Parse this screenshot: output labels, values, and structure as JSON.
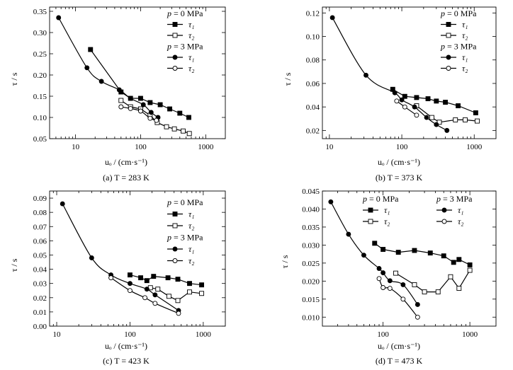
{
  "chart_data": [
    {
      "type": "line",
      "panel": "a",
      "caption": "(a) T = 283 K",
      "xlabel": "uₒ / (cm·s⁻¹)",
      "ylabel": "τ / s",
      "xscale": "log",
      "xlim": [
        4,
        2000
      ],
      "ylim": [
        0.05,
        0.36
      ],
      "yticks": [
        0.05,
        0.1,
        0.15,
        0.2,
        0.25,
        0.3,
        0.35
      ],
      "ytick_labels": [
        "0.05",
        "0.10",
        "0.15",
        "0.20",
        "0.25",
        "0.30",
        "0.35"
      ],
      "xticks": [
        10,
        100,
        1000
      ],
      "xtick_labels": [
        "10",
        "100",
        "1000"
      ],
      "legend": {
        "position": "top-right",
        "layout": "column",
        "groups": [
          {
            "title_var": "p",
            "title_rest": " = 0  MPa",
            "items": [
              {
                "label": "τ₁",
                "marker": "filled-square"
              },
              {
                "label": "τ₂",
                "marker": "open-square"
              }
            ]
          },
          {
            "title_var": "p",
            "title_rest": " = 3  MPa",
            "items": [
              {
                "label": "τ₁",
                "marker": "filled-circle"
              },
              {
                "label": "τ₂",
                "marker": "open-circle"
              }
            ]
          }
        ]
      },
      "series": [
        {
          "name": "p=0 MPa τ1",
          "marker": "filled-square",
          "smooth": false,
          "x": [
            17,
            50,
            70,
            100,
            140,
            200,
            280,
            400,
            550
          ],
          "y": [
            0.26,
            0.16,
            0.145,
            0.145,
            0.135,
            0.13,
            0.12,
            0.11,
            0.1
          ]
        },
        {
          "name": "p=0 MPa τ2",
          "marker": "open-square",
          "smooth": false,
          "x": [
            50,
            70,
            100,
            140,
            180,
            250,
            330,
            450,
            560
          ],
          "y": [
            0.14,
            0.125,
            0.12,
            0.105,
            0.088,
            0.078,
            0.073,
            0.068,
            0.062
          ]
        },
        {
          "name": "p=3 MPa τ1",
          "marker": "filled-circle",
          "smooth": true,
          "x": [
            5.5,
            15,
            25,
            47,
            70,
            110,
            145,
            185
          ],
          "y": [
            0.335,
            0.217,
            0.185,
            0.165,
            0.145,
            0.13,
            0.112,
            0.1
          ]
        },
        {
          "name": "p=3 MPa τ2",
          "marker": "open-circle",
          "smooth": true,
          "x": [
            50,
            70,
            100,
            140,
            175
          ],
          "y": [
            0.125,
            0.121,
            0.115,
            0.098,
            0.093
          ]
        }
      ]
    },
    {
      "type": "line",
      "panel": "b",
      "caption": "(b) T = 373 K",
      "xlabel": "uₒ / (cm·s⁻¹)",
      "ylabel": "τ / s",
      "xscale": "log",
      "xlim": [
        8,
        2000
      ],
      "ylim": [
        0.013,
        0.125
      ],
      "yticks": [
        0.02,
        0.04,
        0.06,
        0.08,
        0.1,
        0.12
      ],
      "ytick_labels": [
        "0.02",
        "0.04",
        "0.06",
        "0.08",
        "0.10",
        "0.12"
      ],
      "xticks": [
        10,
        100,
        1000
      ],
      "xtick_labels": [
        "10",
        "100",
        "1000"
      ],
      "legend": {
        "position": "top-right",
        "layout": "column",
        "groups": [
          {
            "title_var": "p",
            "title_rest": " = 0  MPa",
            "items": [
              {
                "label": "τ₁",
                "marker": "filled-square"
              },
              {
                "label": "τ₂",
                "marker": "open-square"
              }
            ]
          },
          {
            "title_var": "p",
            "title_rest": " = 3  MPa",
            "items": [
              {
                "label": "τ₁",
                "marker": "filled-circle"
              },
              {
                "label": "τ₂",
                "marker": "open-circle"
              }
            ]
          }
        ]
      },
      "series": [
        {
          "name": "p=0 MPa τ1",
          "marker": "filled-square",
          "smooth": false,
          "x": [
            75,
            110,
            160,
            230,
            300,
            400,
            600,
            1050
          ],
          "y": [
            0.055,
            0.049,
            0.048,
            0.047,
            0.045,
            0.044,
            0.041,
            0.035
          ]
        },
        {
          "name": "p=0 MPa τ2",
          "marker": "open-square",
          "smooth": false,
          "x": [
            160,
            260,
            330,
            550,
            750,
            1100
          ],
          "y": [
            0.041,
            0.031,
            0.027,
            0.029,
            0.029,
            0.028
          ]
        },
        {
          "name": "p=3 MPa τ1",
          "marker": "filled-circle",
          "smooth": true,
          "x": [
            11,
            32,
            80,
            100,
            150,
            220,
            300,
            420
          ],
          "y": [
            0.116,
            0.067,
            0.052,
            0.046,
            0.04,
            0.031,
            0.025,
            0.02
          ]
        },
        {
          "name": "p=3 MPa τ2",
          "marker": "open-circle",
          "smooth": true,
          "x": [
            85,
            110,
            160
          ],
          "y": [
            0.045,
            0.04,
            0.033
          ]
        }
      ]
    },
    {
      "type": "line",
      "panel": "c",
      "caption": "(c) T = 423 K",
      "xlabel": "uₒ / (cm·s⁻¹)",
      "ylabel": "τ / s",
      "xscale": "log",
      "xlim": [
        8,
        2000
      ],
      "ylim": [
        0,
        0.095
      ],
      "yticks": [
        0,
        0.01,
        0.02,
        0.03,
        0.04,
        0.05,
        0.06,
        0.07,
        0.08,
        0.09
      ],
      "ytick_labels": [
        "0.00",
        "0.01",
        "0.02",
        "0.03",
        "0.04",
        "0.05",
        "0.06",
        "0.07",
        "0.08",
        "0.09"
      ],
      "xticks": [
        10,
        100,
        1000
      ],
      "xtick_labels": [
        "10",
        "100",
        "1000"
      ],
      "legend": {
        "position": "top-right",
        "layout": "column",
        "groups": [
          {
            "title_var": "p",
            "title_rest": " = 0  MPa",
            "items": [
              {
                "label": "τ₁",
                "marker": "filled-square"
              },
              {
                "label": "τ₂",
                "marker": "open-square"
              }
            ]
          },
          {
            "title_var": "p",
            "title_rest": " = 3  MPa",
            "items": [
              {
                "label": "τ₁",
                "marker": "filled-circle"
              },
              {
                "label": "τ₂",
                "marker": "open-circle"
              }
            ]
          }
        ]
      },
      "series": [
        {
          "name": "p=0 MPa τ1",
          "marker": "filled-square",
          "smooth": false,
          "x": [
            100,
            140,
            170,
            210,
            330,
            450,
            650,
            950
          ],
          "y": [
            0.036,
            0.034,
            0.032,
            0.035,
            0.034,
            0.033,
            0.03,
            0.029
          ]
        },
        {
          "name": "p=0 MPa τ2",
          "marker": "open-square",
          "smooth": false,
          "x": [
            190,
            240,
            340,
            450,
            650,
            950
          ],
          "y": [
            0.027,
            0.026,
            0.021,
            0.018,
            0.024,
            0.023
          ]
        },
        {
          "name": "p=3 MPa τ1",
          "marker": "filled-circle",
          "smooth": true,
          "x": [
            12,
            30,
            55,
            100,
            170,
            220,
            460
          ],
          "y": [
            0.086,
            0.048,
            0.036,
            0.03,
            0.026,
            0.022,
            0.011
          ]
        },
        {
          "name": "p=3 MPa τ2",
          "marker": "open-circle",
          "smooth": true,
          "x": [
            55,
            100,
            160,
            220,
            460
          ],
          "y": [
            0.034,
            0.025,
            0.02,
            0.016,
            0.009
          ]
        }
      ]
    },
    {
      "type": "line",
      "panel": "d",
      "caption": "(d) T = 473 K",
      "xlabel": "uₒ / (cm·s⁻¹)",
      "ylabel": "τ / s",
      "xscale": "log",
      "xlim": [
        20,
        2000
      ],
      "ylim": [
        0.0075,
        0.045
      ],
      "yticks": [
        0.01,
        0.015,
        0.02,
        0.025,
        0.03,
        0.035,
        0.04,
        0.045
      ],
      "ytick_labels": [
        "0.010",
        "0.015",
        "0.020",
        "0.025",
        "0.030",
        "0.035",
        "0.040",
        "0.045"
      ],
      "xticks": [
        100,
        1000
      ],
      "xtick_labels": [
        "100",
        "1000"
      ],
      "legend": {
        "position": "top",
        "layout": "two-columns",
        "groups": [
          {
            "title_var": "p",
            "title_rest": " = 0  MPa",
            "items": [
              {
                "label": "τ₁",
                "marker": "filled-square"
              },
              {
                "label": "τ₂",
                "marker": "open-square"
              }
            ]
          },
          {
            "title_var": "p",
            "title_rest": " = 3  MPa",
            "items": [
              {
                "label": "τ₁",
                "marker": "filled-circle"
              },
              {
                "label": "τ₂",
                "marker": "open-circle"
              }
            ]
          }
        ]
      },
      "series": [
        {
          "name": "p=0 MPa τ1",
          "marker": "filled-square",
          "smooth": false,
          "x": [
            80,
            100,
            150,
            230,
            350,
            500,
            650,
            750,
            1000
          ],
          "y": [
            0.0305,
            0.0288,
            0.028,
            0.0285,
            0.0278,
            0.027,
            0.0252,
            0.026,
            0.0245
          ]
        },
        {
          "name": "p=0 MPa τ2",
          "marker": "open-square",
          "smooth": false,
          "x": [
            140,
            230,
            300,
            430,
            600,
            750,
            1000
          ],
          "y": [
            0.0222,
            0.019,
            0.017,
            0.017,
            0.0212,
            0.018,
            0.023
          ]
        },
        {
          "name": "p=3 MPa τ1",
          "marker": "filled-circle",
          "smooth": true,
          "x": [
            25,
            40,
            60,
            90,
            100,
            120,
            170,
            250
          ],
          "y": [
            0.042,
            0.033,
            0.0272,
            0.0235,
            0.0223,
            0.0201,
            0.019,
            0.0135
          ]
        },
        {
          "name": "p=3 MPa τ2",
          "marker": "open-circle",
          "smooth": true,
          "x": [
            90,
            100,
            120,
            170,
            250
          ],
          "y": [
            0.0207,
            0.0182,
            0.018,
            0.015,
            0.01
          ]
        }
      ]
    }
  ]
}
